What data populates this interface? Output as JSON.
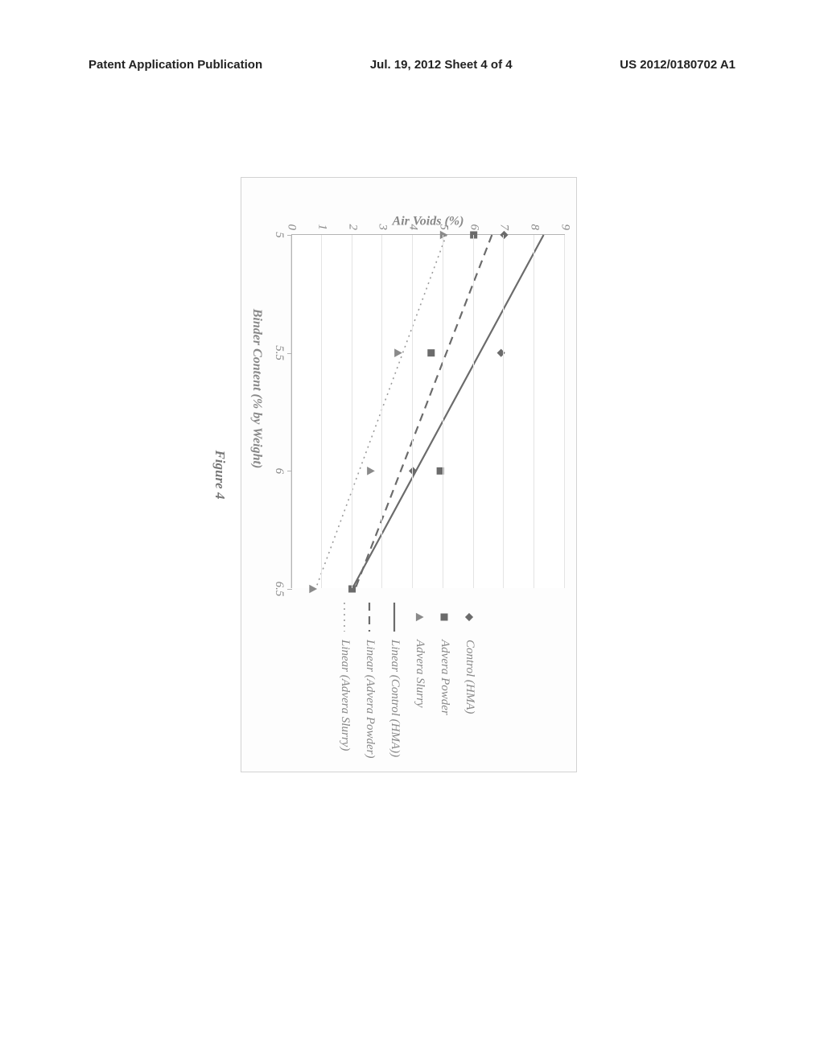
{
  "header": {
    "left": "Patent Application Publication",
    "center": "Jul. 19, 2012  Sheet 4 of 4",
    "right": "US 2012/0180702 A1"
  },
  "figure": {
    "caption": "Figure 4",
    "chart": {
      "type": "scatter-with-linear-fit",
      "x_axis": {
        "title": "Binder Content (% by Weight)",
        "min": 5.0,
        "max": 6.5,
        "ticks": [
          5.0,
          5.5,
          6.0,
          6.5
        ]
      },
      "y_axis": {
        "title": "Air Voids (%)",
        "min": 0,
        "max": 9,
        "ticks": [
          0,
          1,
          2,
          3,
          4,
          5,
          6,
          7,
          8,
          9
        ]
      },
      "grid_color": "#e4e4e4",
      "axis_color": "#b4b4b4",
      "background_color": "#ffffff",
      "tick_label_color": "#888888",
      "series": [
        {
          "key": "control_hma",
          "label": "Control (HMA)",
          "marker": "diamond",
          "marker_color": "#6b6b6b",
          "marker_size": 9,
          "points": [
            [
              5.0,
              7.0
            ],
            [
              5.5,
              6.9
            ],
            [
              6.0,
              4.0
            ]
          ]
        },
        {
          "key": "advera_powder",
          "label": "Advera Powder",
          "marker": "square",
          "marker_color": "#6b6b6b",
          "marker_size": 9,
          "points": [
            [
              5.0,
              6.0
            ],
            [
              5.5,
              4.6
            ],
            [
              6.0,
              4.9
            ],
            [
              6.5,
              2.0
            ]
          ]
        },
        {
          "key": "advera_slurry",
          "label": "Advera Slurry",
          "marker": "triangle",
          "marker_color": "#8a8a8a",
          "marker_size": 10,
          "points": [
            [
              5.0,
              5.0
            ],
            [
              5.5,
              3.5
            ],
            [
              6.0,
              2.6
            ],
            [
              6.5,
              0.7
            ]
          ]
        }
      ],
      "fits": [
        {
          "key": "lin_control",
          "label": "Linear (Control (HMA))",
          "stroke": "#6b6b6b",
          "width": 2.2,
          "dash": "none",
          "p1": [
            5.0,
            8.3
          ],
          "p2": [
            6.5,
            2.0
          ]
        },
        {
          "key": "lin_powder",
          "label": "Linear (Advera Powder)",
          "stroke": "#6b6b6b",
          "width": 2.2,
          "dash": "10 7",
          "p1": [
            5.0,
            6.6
          ],
          "p2": [
            6.5,
            2.1
          ]
        },
        {
          "key": "lin_slurry",
          "label": "Linear (Advera Slurry)",
          "stroke": "#9a9a9a",
          "width": 1.6,
          "dash": "2 5",
          "p1": [
            5.0,
            5.1
          ],
          "p2": [
            6.5,
            0.8
          ]
        }
      ],
      "legend_order": [
        "control_hma",
        "advera_powder",
        "advera_slurry",
        "lin_control",
        "lin_powder",
        "lin_slurry"
      ]
    }
  }
}
